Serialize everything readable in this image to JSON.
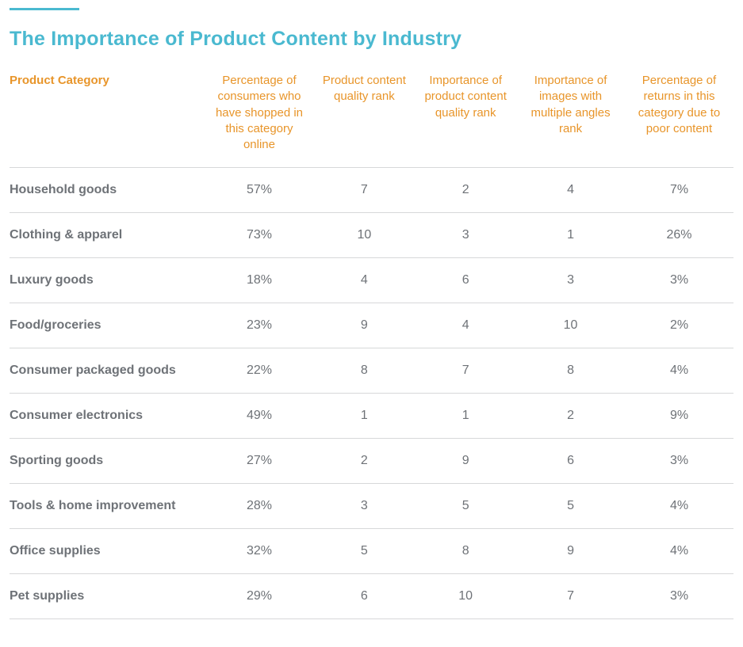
{
  "title": "The Importance of Product Content by Industry",
  "colors": {
    "accent": "#4ab9d0",
    "header_text": "#e8952a",
    "body_text": "#6e7277",
    "rule": "#d7d8d9",
    "background": "#ffffff"
  },
  "typography": {
    "title_fontsize": 25,
    "header_fontsize": 15,
    "cell_fontsize": 16,
    "font_family": "Helvetica Neue"
  },
  "table": {
    "type": "table",
    "column_widths_pct": [
      27,
      15,
      14,
      14,
      15,
      15
    ],
    "alignments": [
      "left",
      "center",
      "center",
      "center",
      "center",
      "center"
    ],
    "columns": [
      "Product Category",
      "Percentage of consumers who have shopped in this category online",
      "Product content quality rank",
      "Importance of product content quality rank",
      "Importance of images with multiple angles rank",
      "Percentage of returns in this category due to poor content"
    ],
    "rows": [
      [
        "Household goods",
        "57%",
        "7",
        "2",
        "4",
        "7%"
      ],
      [
        "Clothing & apparel",
        "73%",
        "10",
        "3",
        "1",
        "26%"
      ],
      [
        "Luxury goods",
        "18%",
        "4",
        "6",
        "3",
        "3%"
      ],
      [
        "Food/groceries",
        "23%",
        "9",
        "4",
        "10",
        "2%"
      ],
      [
        "Consumer packaged goods",
        "22%",
        "8",
        "7",
        "8",
        "4%"
      ],
      [
        "Consumer electronics",
        "49%",
        "1",
        "1",
        "2",
        "9%"
      ],
      [
        "Sporting goods",
        "27%",
        "2",
        "9",
        "6",
        "3%"
      ],
      [
        "Tools & home improvement",
        "28%",
        "3",
        "5",
        "5",
        "4%"
      ],
      [
        "Office supplies",
        "32%",
        "5",
        "8",
        "9",
        "4%"
      ],
      [
        "Pet supplies",
        "29%",
        "6",
        "10",
        "7",
        "3%"
      ]
    ]
  }
}
